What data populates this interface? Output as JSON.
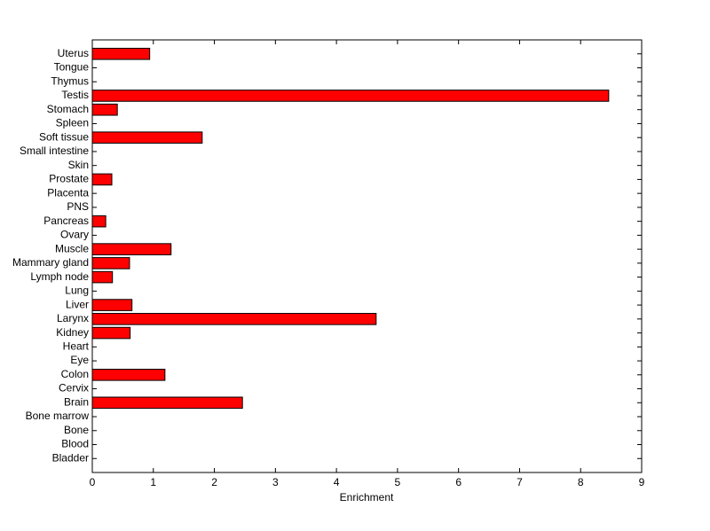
{
  "chart_data": {
    "type": "barh",
    "x_label": "Enrichment",
    "categories": [
      "Bladder",
      "Blood",
      "Bone",
      "Bone marrow",
      "Brain",
      "Cervix",
      "Colon",
      "Eye",
      "Heart",
      "Kidney",
      "Larynx",
      "Liver",
      "Lung",
      "Lymph node",
      "Mammary gland",
      "Muscle",
      "Ovary",
      "Pancreas",
      "PNS",
      "Placenta",
      "Prostate",
      "Skin",
      "Small intestine",
      "Soft tissue",
      "Spleen",
      "Stomach",
      "Testis",
      "Thymus",
      "Tongue",
      "Uterus"
    ],
    "values": [
      0,
      0,
      0,
      0,
      2.46,
      0,
      1.19,
      0,
      0,
      0.62,
      4.65,
      0.65,
      0,
      0.33,
      0.61,
      1.29,
      0,
      0.22,
      0,
      0,
      0.32,
      0,
      0,
      1.8,
      0,
      0.41,
      8.46,
      0,
      0,
      0.94
    ],
    "color": "#ff0000",
    "xlim": [
      0,
      9
    ],
    "xticks": [
      0,
      1,
      2,
      3,
      4,
      5,
      6,
      7,
      8,
      9
    ]
  }
}
